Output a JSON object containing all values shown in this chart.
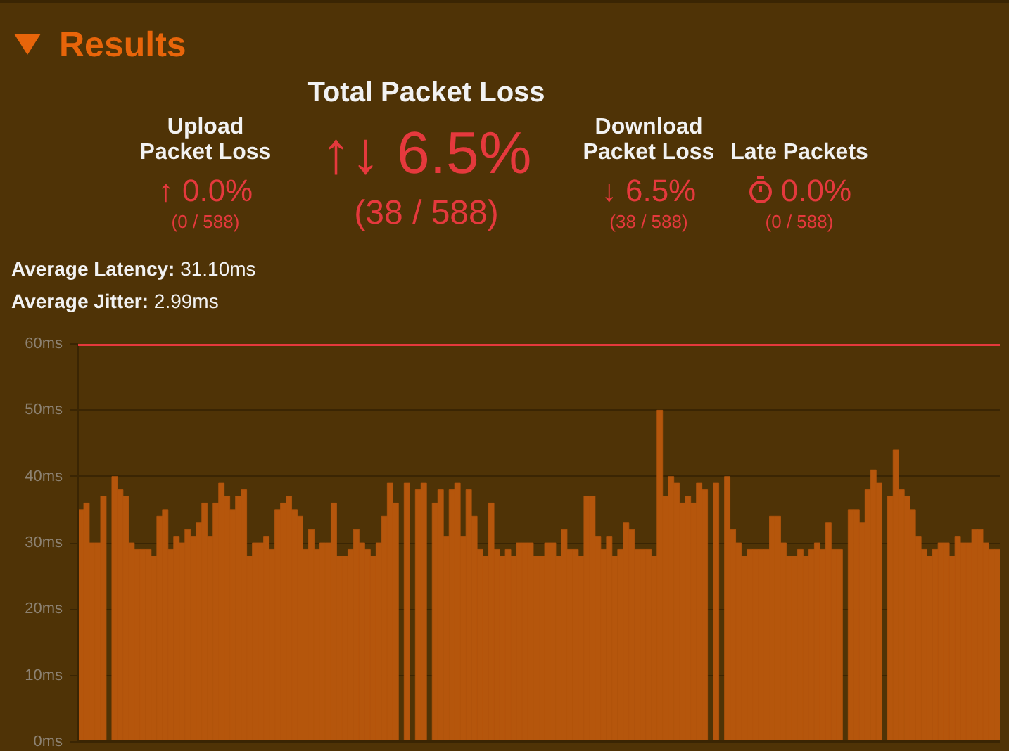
{
  "chart_data": {
    "type": "bar",
    "title": "Results",
    "annotations": [
      "Total Packet Loss",
      "↑↓ 6.5%",
      "(38 / 588)",
      "Upload Packet Loss",
      "↑ 0.0%",
      "(0 / 588)",
      "Download Packet Loss",
      "↓ 6.5%",
      "(38 / 588)",
      "Late Packets",
      "0.0%",
      "(0 / 588)",
      "Average Latency: 31.10ms",
      "Average Jitter: 2.99ms"
    ],
    "categories": [
      null,
      null,
      null,
      null,
      null,
      null,
      null,
      null,
      null,
      null,
      null,
      null,
      null,
      null,
      null,
      null,
      null,
      null,
      null,
      null,
      null,
      null,
      null,
      null,
      null,
      null,
      null,
      null,
      null,
      null,
      null,
      null,
      null,
      null,
      null,
      null,
      null,
      null,
      null,
      null,
      null,
      null,
      null,
      null,
      null,
      null,
      null,
      null,
      null,
      null,
      null,
      null,
      null,
      null,
      null,
      null,
      null,
      null,
      null,
      null,
      null,
      null,
      null,
      null,
      null,
      null,
      null,
      null,
      null,
      null,
      null,
      null,
      null,
      null,
      null,
      null,
      null,
      null,
      null,
      null,
      null,
      null,
      null,
      null,
      null,
      null,
      null,
      null,
      null,
      null,
      null,
      null,
      null,
      null,
      null,
      null,
      null,
      null,
      null,
      null,
      null,
      null,
      null,
      null,
      null,
      null,
      null,
      null,
      null,
      null,
      null,
      null,
      null,
      null,
      null,
      null,
      null,
      null,
      null,
      null,
      null,
      null,
      null,
      null,
      null,
      null,
      null,
      null,
      null,
      null,
      null,
      null,
      null,
      null,
      null,
      null,
      null,
      null,
      null,
      null,
      null,
      null,
      null,
      null,
      null,
      null,
      null,
      null,
      null,
      null,
      null,
      null,
      null,
      null,
      null,
      null,
      null,
      null,
      null,
      null,
      null,
      null,
      null,
      null
    ],
    "values": [
      35,
      36,
      30,
      30,
      37,
      null,
      40,
      38,
      37,
      30,
      29,
      29,
      29,
      28,
      34,
      35,
      29,
      31,
      30,
      32,
      31,
      33,
      36,
      31,
      36,
      39,
      37,
      35,
      37,
      38,
      28,
      30,
      30,
      31,
      29,
      35,
      36,
      37,
      35,
      34,
      29,
      32,
      29,
      30,
      30,
      36,
      28,
      28,
      29,
      32,
      30,
      29,
      28,
      30,
      34,
      39,
      36,
      null,
      39,
      null,
      38,
      39,
      null,
      36,
      38,
      31,
      38,
      39,
      31,
      38,
      34,
      29,
      28,
      36,
      29,
      28,
      29,
      28,
      30,
      30,
      30,
      28,
      28,
      30,
      30,
      28,
      32,
      29,
      29,
      28,
      37,
      37,
      31,
      29,
      31,
      28,
      29,
      33,
      32,
      29,
      29,
      29,
      28,
      50,
      37,
      40,
      39,
      36,
      37,
      36,
      39,
      38,
      null,
      39,
      null,
      40,
      32,
      30,
      28,
      29,
      29,
      29,
      29,
      34,
      34,
      30,
      28,
      28,
      29,
      28,
      29,
      30,
      29,
      33,
      29,
      29,
      null,
      35,
      35,
      33,
      38,
      41,
      39,
      null,
      37,
      44,
      38,
      37,
      35,
      31,
      29,
      28,
      29,
      30,
      30,
      28,
      31,
      30,
      30,
      32,
      32,
      30,
      29,
      29
    ],
    "color": "#b5560c",
    "ylim": [
      0,
      60
    ],
    "yticks": [
      {
        "value": 0,
        "label": "0ms"
      },
      {
        "value": 10,
        "label": "10ms"
      },
      {
        "value": 20,
        "label": "20ms"
      },
      {
        "value": 30,
        "label": "30ms"
      },
      {
        "value": 40,
        "label": "40ms"
      },
      {
        "value": 50,
        "label": "50ms"
      },
      {
        "value": 60,
        "label": "60ms"
      }
    ],
    "grid": "y",
    "tick_labels": "y",
    "ref_lines": [
      {
        "axis": "y",
        "value": 60,
        "color": "#e5393d"
      }
    ]
  }
}
